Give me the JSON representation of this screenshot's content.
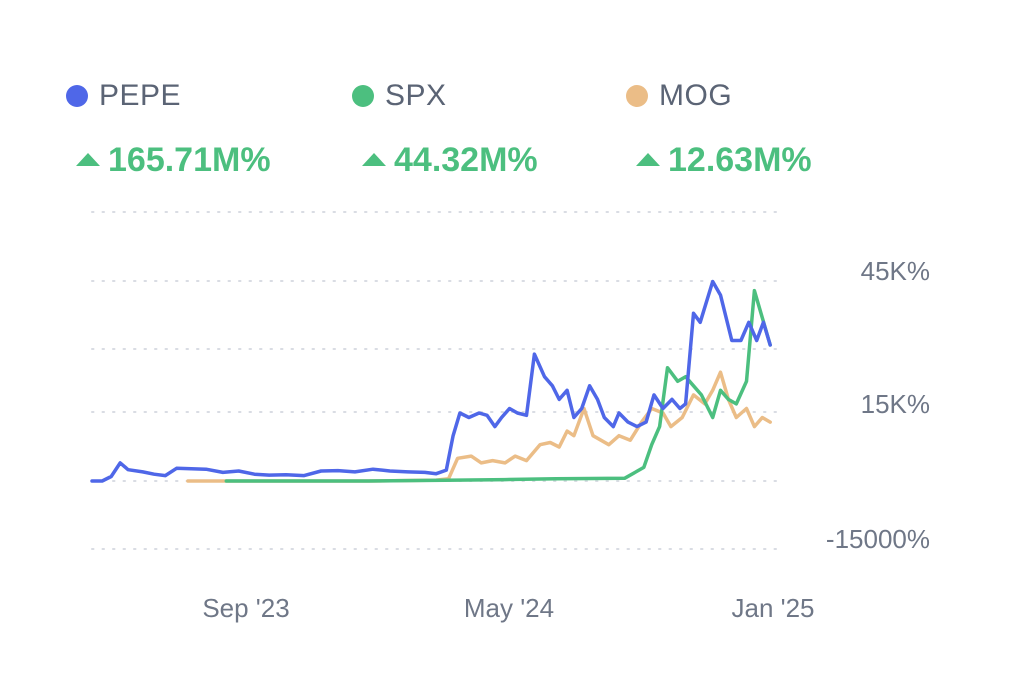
{
  "legend": [
    {
      "name": "PEPE",
      "color": "#4f67e8",
      "change": "165.71M%"
    },
    {
      "name": "SPX",
      "color": "#4cbf7f",
      "change": "44.32M%"
    },
    {
      "name": "MOG",
      "color": "#ebbd87",
      "change": "12.63M%"
    }
  ],
  "chart_data": {
    "type": "line",
    "y_ticks": [
      {
        "value": 45000,
        "label": "45K%"
      },
      {
        "value": 15000,
        "label": "15K%"
      },
      {
        "value": -15000,
        "label": "-15000%"
      }
    ],
    "x_ticks": [
      {
        "x": "2023-09-01",
        "label": "Sep '23"
      },
      {
        "x": "2024-05-01",
        "label": "May '24"
      },
      {
        "x": "2025-01-01",
        "label": "Jan '25"
      }
    ],
    "xlim": [
      "2023-05-01",
      "2025-01-05"
    ],
    "ylim": [
      -15000,
      60000
    ],
    "grid": true,
    "series": [
      {
        "name": "PEPE",
        "color": "#4f67e8",
        "points": [
          [
            "2023-05-01",
            0
          ],
          [
            "2023-05-10",
            0
          ],
          [
            "2023-05-18",
            1000
          ],
          [
            "2023-05-26",
            4000
          ],
          [
            "2023-06-02",
            2500
          ],
          [
            "2023-06-15",
            2000
          ],
          [
            "2023-06-25",
            1500
          ],
          [
            "2023-07-05",
            1200
          ],
          [
            "2023-07-15",
            2800
          ],
          [
            "2023-07-28",
            2700
          ],
          [
            "2023-08-10",
            2600
          ],
          [
            "2023-08-25",
            1900
          ],
          [
            "2023-09-08",
            2200
          ],
          [
            "2023-09-22",
            1500
          ],
          [
            "2023-10-05",
            1300
          ],
          [
            "2023-10-20",
            1400
          ],
          [
            "2023-11-05",
            1200
          ],
          [
            "2023-11-20",
            2200
          ],
          [
            "2023-12-05",
            2300
          ],
          [
            "2023-12-20",
            2000
          ],
          [
            "2024-01-05",
            2600
          ],
          [
            "2024-01-20",
            2200
          ],
          [
            "2024-02-05",
            2000
          ],
          [
            "2024-02-20",
            1900
          ],
          [
            "2024-03-01",
            1600
          ],
          [
            "2024-03-10",
            2400
          ],
          [
            "2024-03-16",
            10000
          ],
          [
            "2024-03-22",
            15000
          ],
          [
            "2024-03-30",
            14000
          ],
          [
            "2024-04-08",
            15000
          ],
          [
            "2024-04-15",
            14500
          ],
          [
            "2024-04-22",
            12000
          ],
          [
            "2024-04-28",
            14000
          ],
          [
            "2024-05-05",
            16000
          ],
          [
            "2024-05-12",
            15000
          ],
          [
            "2024-05-20",
            14500
          ],
          [
            "2024-05-27",
            28000
          ],
          [
            "2024-06-05",
            23000
          ],
          [
            "2024-06-12",
            21000
          ],
          [
            "2024-06-18",
            18000
          ],
          [
            "2024-06-25",
            20000
          ],
          [
            "2024-07-01",
            14000
          ],
          [
            "2024-07-08",
            16000
          ],
          [
            "2024-07-15",
            21000
          ],
          [
            "2024-07-22",
            18000
          ],
          [
            "2024-07-28",
            14000
          ],
          [
            "2024-08-05",
            12000
          ],
          [
            "2024-08-10",
            15000
          ],
          [
            "2024-08-18",
            13000
          ],
          [
            "2024-08-26",
            12000
          ],
          [
            "2024-09-03",
            13000
          ],
          [
            "2024-09-10",
            19000
          ],
          [
            "2024-09-18",
            16000
          ],
          [
            "2024-09-26",
            18000
          ],
          [
            "2024-10-03",
            16000
          ],
          [
            "2024-10-08",
            17000
          ],
          [
            "2024-10-15",
            37000
          ],
          [
            "2024-10-21",
            35000
          ],
          [
            "2024-11-01",
            44000
          ],
          [
            "2024-11-08",
            41000
          ],
          [
            "2024-11-18",
            31000
          ],
          [
            "2024-11-26",
            31000
          ],
          [
            "2024-12-03",
            35000
          ],
          [
            "2024-12-10",
            31000
          ],
          [
            "2024-12-16",
            35000
          ],
          [
            "2024-12-22",
            30000
          ]
        ]
      },
      {
        "name": "SPX",
        "color": "#4cbf7f",
        "points": [
          [
            "2023-08-28",
            0
          ],
          [
            "2023-10-15",
            0
          ],
          [
            "2024-01-01",
            0
          ],
          [
            "2024-03-20",
            200
          ],
          [
            "2024-05-01",
            300
          ],
          [
            "2024-06-15",
            500
          ],
          [
            "2024-08-15",
            600
          ],
          [
            "2024-09-01",
            3000
          ],
          [
            "2024-09-08",
            8000
          ],
          [
            "2024-09-15",
            12000
          ],
          [
            "2024-09-22",
            25000
          ],
          [
            "2024-10-01",
            22000
          ],
          [
            "2024-10-08",
            23000
          ],
          [
            "2024-10-15",
            21000
          ],
          [
            "2024-10-22",
            19000
          ],
          [
            "2024-11-01",
            14000
          ],
          [
            "2024-11-08",
            20000
          ],
          [
            "2024-11-15",
            18000
          ],
          [
            "2024-11-22",
            17000
          ],
          [
            "2024-12-01",
            22000
          ],
          [
            "2024-12-08",
            42000
          ],
          [
            "2024-12-15",
            36000
          ],
          [
            "2024-12-22",
            30000
          ]
        ]
      },
      {
        "name": "MOG",
        "color": "#ebbd87",
        "points": [
          [
            "2023-07-25",
            0
          ],
          [
            "2023-10-01",
            0
          ],
          [
            "2024-01-01",
            0
          ],
          [
            "2024-03-01",
            200
          ],
          [
            "2024-03-12",
            500
          ],
          [
            "2024-03-20",
            5000
          ],
          [
            "2024-04-01",
            5500
          ],
          [
            "2024-04-10",
            4000
          ],
          [
            "2024-04-20",
            4500
          ],
          [
            "2024-05-01",
            4000
          ],
          [
            "2024-05-10",
            5500
          ],
          [
            "2024-05-20",
            4500
          ],
          [
            "2024-06-01",
            8000
          ],
          [
            "2024-06-10",
            8500
          ],
          [
            "2024-06-18",
            7500
          ],
          [
            "2024-06-25",
            11000
          ],
          [
            "2024-07-01",
            10000
          ],
          [
            "2024-07-10",
            16000
          ],
          [
            "2024-07-18",
            10000
          ],
          [
            "2024-07-25",
            9000
          ],
          [
            "2024-08-01",
            8000
          ],
          [
            "2024-08-10",
            10000
          ],
          [
            "2024-08-20",
            9000
          ],
          [
            "2024-08-30",
            13000
          ],
          [
            "2024-09-08",
            16000
          ],
          [
            "2024-09-18",
            15000
          ],
          [
            "2024-09-25",
            12000
          ],
          [
            "2024-10-05",
            14000
          ],
          [
            "2024-10-15",
            19000
          ],
          [
            "2024-10-25",
            17000
          ],
          [
            "2024-11-01",
            20000
          ],
          [
            "2024-11-08",
            24000
          ],
          [
            "2024-11-15",
            18000
          ],
          [
            "2024-11-22",
            14000
          ],
          [
            "2024-12-01",
            16000
          ],
          [
            "2024-12-08",
            12000
          ],
          [
            "2024-12-15",
            14000
          ],
          [
            "2024-12-22",
            13000
          ]
        ]
      }
    ]
  }
}
